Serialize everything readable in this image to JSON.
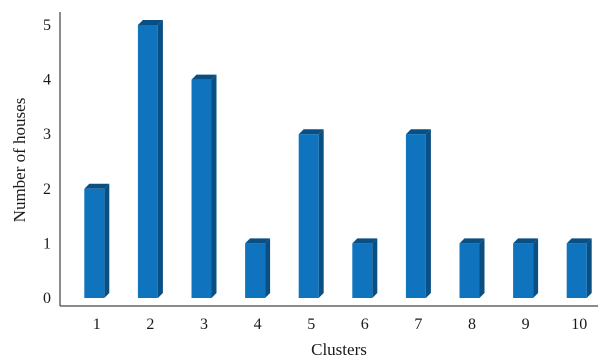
{
  "chart_data": {
    "type": "bar",
    "categories": [
      "1",
      "2",
      "3",
      "4",
      "5",
      "6",
      "7",
      "8",
      "9",
      "10"
    ],
    "values": [
      2,
      5,
      4,
      1,
      3,
      1,
      3,
      1,
      1,
      1
    ],
    "xlabel": "Clusters",
    "ylabel": "Number of houses",
    "ylim": [
      0,
      5
    ],
    "yticks": [
      0,
      1,
      2,
      3,
      4,
      5
    ],
    "grid": false,
    "legend": "none",
    "bar_style": "3d",
    "colors": {
      "bar_front": "#0f74bd",
      "bar_side": "#0a4f83",
      "bar_top": "#0a4f83",
      "axis": "#1a1a1a"
    }
  }
}
